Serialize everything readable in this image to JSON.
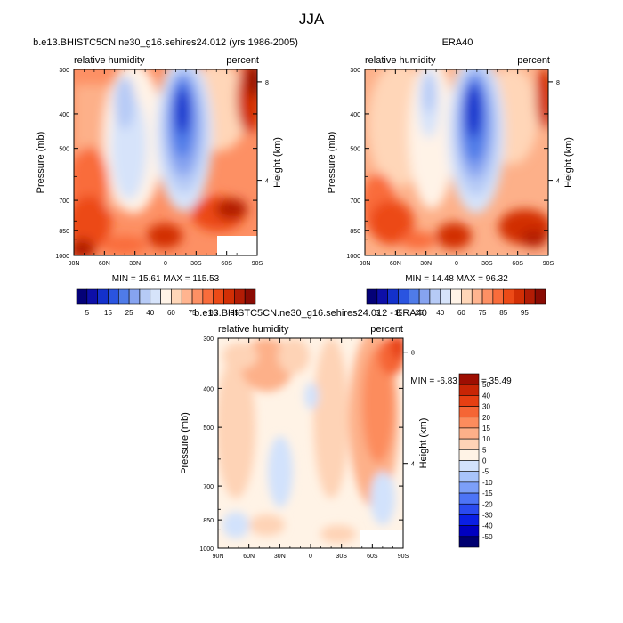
{
  "page_title": "JJA",
  "units": {
    "left": "relative humidity",
    "right": "percent"
  },
  "colors": {
    "seq": [
      "#040178",
      "#0d0fa8",
      "#1331cc",
      "#2a54e0",
      "#4f7be8",
      "#86a3f0",
      "#b6caf6",
      "#d6e3fa",
      "#fff3e7",
      "#ffd6b8",
      "#ffb48f",
      "#fd9064",
      "#f96c3b",
      "#ec4a17",
      "#d22f05",
      "#b21c05",
      "#8a0b03"
    ],
    "diff": [
      "#000070",
      "#0000c0",
      "#0a1fe4",
      "#2a4aef",
      "#4d74f6",
      "#7c9ff8",
      "#a8c4fb",
      "#d2e2fc",
      "#fff3e6",
      "#fed3b6",
      "#fdb089",
      "#fc8c5d",
      "#f56535",
      "#e63f12",
      "#c82505",
      "#9e0e02"
    ]
  },
  "chart_data": [
    {
      "type": "heatmap",
      "panel": "model",
      "title": "b.e13.BHISTC5CN.ne30_g16.sehires24.012 (yrs 1986-2005)",
      "left_label": "relative humidity",
      "right_label": "percent",
      "ylabel": "Pressure (mb)",
      "ylabel_right": "Height (km)",
      "x_ticks": [
        "90N",
        "60N",
        "30N",
        "0",
        "30S",
        "60S",
        "90S"
      ],
      "y_ticks": [
        "300",
        "400",
        "500",
        "700",
        "850",
        "1000"
      ],
      "y_right_ticks": [
        "8",
        "4"
      ],
      "xlim": [
        90,
        -90
      ],
      "ylim": [
        1000,
        300
      ],
      "ylog": true,
      "min_max": "MIN =  15.61  MAX = 115.53"
    },
    {
      "type": "heatmap",
      "panel": "obs",
      "title": "ERA40",
      "left_label": "relative humidity",
      "right_label": "percent",
      "ylabel": "Pressure (mb)",
      "ylabel_right": "Height (km)",
      "x_ticks": [
        "90N",
        "60N",
        "30N",
        "0",
        "30S",
        "60S",
        "90S"
      ],
      "y_ticks": [
        "300",
        "400",
        "500",
        "700",
        "850",
        "1000"
      ],
      "y_right_ticks": [
        "8",
        "4"
      ],
      "xlim": [
        90,
        -90
      ],
      "ylim": [
        1000,
        300
      ],
      "ylog": true,
      "min_max": "MIN =  14.48  MAX =  96.32"
    },
    {
      "type": "heatmap",
      "panel": "diff",
      "title": "b.e13.BHISTC5CN.ne30_g16.sehires24.012 - ERA40",
      "left_label": "relative humidity",
      "right_label": "percent",
      "ylabel": "Pressure (mb)",
      "ylabel_right": "Height (km)",
      "x_ticks": [
        "90N",
        "60N",
        "30N",
        "0",
        "30S",
        "60S",
        "90S"
      ],
      "y_ticks": [
        "300",
        "400",
        "500",
        "700",
        "850",
        "1000"
      ],
      "y_right_ticks": [
        "8",
        "4"
      ],
      "xlim": [
        90,
        -90
      ],
      "ylim": [
        1000,
        300
      ],
      "ylog": true,
      "min_max": "MIN =  -6.83  MAX =  35.49"
    }
  ],
  "colorbar_seq": {
    "labels": [
      "5",
      "15",
      "25",
      "40",
      "60",
      "75",
      "85",
      "95"
    ]
  },
  "colorbar_diff": {
    "labels": [
      "50",
      "40",
      "30",
      "20",
      "15",
      "10",
      "5",
      "0",
      "-5",
      "-10",
      "-15",
      "-20",
      "-30",
      "-40",
      "-50"
    ]
  }
}
